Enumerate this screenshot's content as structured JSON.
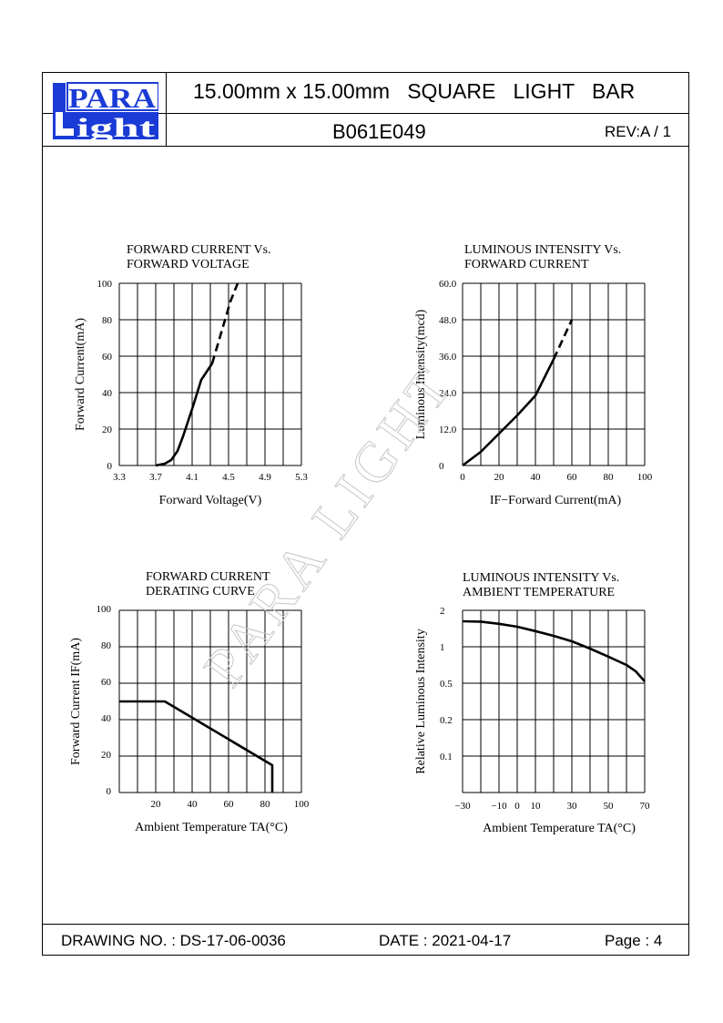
{
  "header": {
    "logo_line1": "PARA",
    "logo_line2": "ight",
    "logo_l": "L",
    "title": "15.00mm x 15.00mm   SQUARE   LIGHT   BAR",
    "part_number": "B061E049",
    "revision": "REV:A / 1"
  },
  "footer": {
    "drawing_no": "DRAWING NO. : DS-17-06-0036",
    "date": "DATE : 2021-04-17",
    "page": "Page : 4"
  },
  "watermark": "PARA LIGHT",
  "chart_data": [
    {
      "type": "line",
      "title_line1": "FORWARD CURRENT Vs.",
      "title_line2": "FORWARD VOLTAGE",
      "xlabel": "Forward Voltage(V)",
      "ylabel": "Forward Current(mA)",
      "xlim": [
        3.3,
        5.3
      ],
      "ylim": [
        0,
        100
      ],
      "x_ticks": [
        "3.3",
        "3.7",
        "4.1",
        "4.5",
        "4.9",
        "5.3"
      ],
      "y_ticks": [
        "0",
        "20",
        "40",
        "60",
        "80",
        "100"
      ],
      "grid": true,
      "series": [
        {
          "style": "solid",
          "x": [
            3.7,
            3.8,
            3.87,
            3.94,
            4.0,
            4.1,
            4.2,
            4.32
          ],
          "y": [
            0,
            1,
            3,
            8,
            16,
            31,
            47,
            56
          ]
        },
        {
          "style": "dashed",
          "x": [
            4.32,
            4.42,
            4.52,
            4.6
          ],
          "y": [
            56,
            73,
            90,
            100
          ]
        }
      ]
    },
    {
      "type": "line",
      "title_line1": "LUMINOUS INTENSITY Vs.",
      "title_line2": "FORWARD CURRENT",
      "xlabel": "IF−Forward Current(mA)",
      "ylabel": "Luminous Intensity(mcd)",
      "xlim": [
        0,
        100
      ],
      "ylim": [
        0,
        60
      ],
      "x_ticks": [
        "0",
        "20",
        "40",
        "60",
        "80",
        "100"
      ],
      "y_ticks": [
        "0",
        "12.0",
        "24.0",
        "36.0",
        "48.0",
        "60.0"
      ],
      "grid": true,
      "series": [
        {
          "style": "solid",
          "x": [
            0,
            10,
            20,
            30,
            40,
            50
          ],
          "y": [
            0,
            4.5,
            10.5,
            16.5,
            23,
            35
          ]
        },
        {
          "style": "dashed",
          "x": [
            50,
            55,
            60
          ],
          "y": [
            35,
            41.5,
            48
          ]
        }
      ]
    },
    {
      "type": "line",
      "title_line1": "FORWARD CURRENT",
      "title_line2": "DERATING CURVE",
      "xlabel": "Ambient Temperature TA(°C)",
      "ylabel": "Forward Current IF(mA)",
      "xlim": [
        0,
        100
      ],
      "ylim": [
        0,
        100
      ],
      "x_ticks": [
        "20",
        "40",
        "60",
        "80",
        "100"
      ],
      "y_ticks": [
        "0",
        "20",
        "40",
        "60",
        "80",
        "100"
      ],
      "grid": true,
      "series": [
        {
          "style": "solid",
          "x": [
            0,
            25,
            84,
            84
          ],
          "y": [
            50,
            50,
            15,
            0
          ]
        }
      ]
    },
    {
      "type": "line",
      "title_line1": "LUMINOUS INTENSITY Vs.",
      "title_line2": "AMBIENT TEMPERATURE",
      "xlabel": "Ambient Temperature TA(°C)",
      "ylabel": "Relative Luminous Intensity",
      "xlim": [
        -30,
        70
      ],
      "y_ticks": [
        "0.1",
        "0.2",
        "0.5",
        "1",
        "2"
      ],
      "x_ticks": [
        "-30",
        "-10",
        "0",
        "10",
        "30",
        "50",
        "70"
      ],
      "grid": true,
      "series": [
        {
          "style": "solid",
          "x": [
            -30,
            -20,
            -10,
            0,
            10,
            20,
            30,
            40,
            50,
            60,
            65,
            70
          ],
          "y_level": [
            4.7,
            4.69,
            4.63,
            4.55,
            4.43,
            4.3,
            4.15,
            3.95,
            3.73,
            3.5,
            3.33,
            3.05
          ]
        }
      ]
    }
  ]
}
